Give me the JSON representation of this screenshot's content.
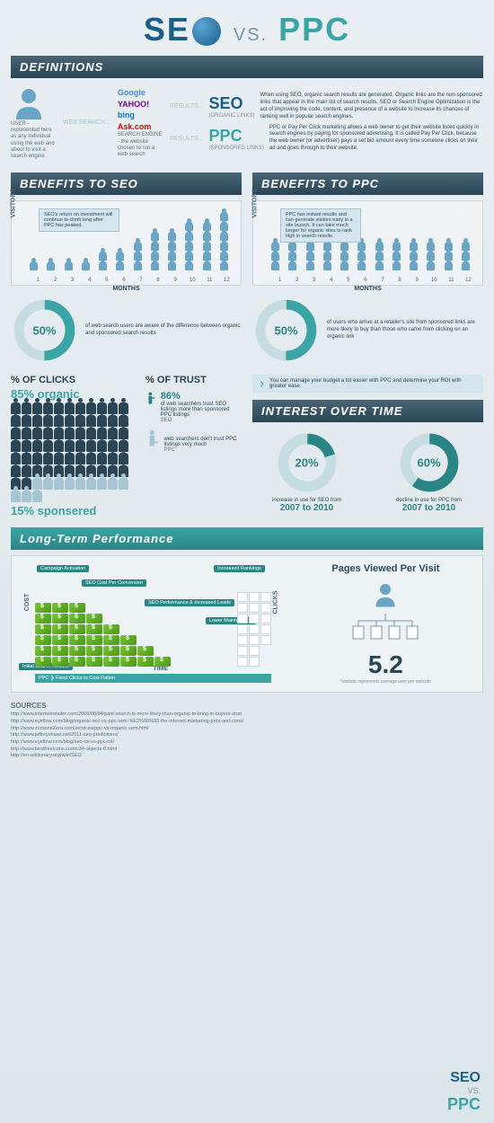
{
  "title": {
    "seo": "SE",
    "vs": "VS.",
    "ppc": "PPC"
  },
  "sections": {
    "def": "DEFINITIONS",
    "bseo": "BENEFITS TO SEO",
    "bppc": "BENEFITS TO PPC",
    "clicks": "% OF CLICKS",
    "trust": "% OF TRUST",
    "interest": "INTEREST OVER TIME",
    "ltp": "Long-Term Performance"
  },
  "def": {
    "user_caption": "USER - represented here as any individual using the web and about to visit a search engine",
    "engine_caption": "SEARCH ENGINE - the website chosen to run a web search",
    "websearch": "WEB SEARCH...",
    "results": "RESULTS...",
    "engines": {
      "google": "Google",
      "yahoo": "YAHOO!",
      "bing": "bing",
      "ask": "Ask.com"
    },
    "seo_label": "SEO",
    "seo_sub": "(ORGANIC LINKS)",
    "seo_text": "When using SEO, organic search results are generated. Organic links are the non-sponsored links that appear in the main list of search results. SEO or Search Engine Optimization is the act of improving the code, content, and presence of a website to increase its chances of ranking well in popular search engines.",
    "ppc_label": "PPC",
    "ppc_sub": "(SPONSORED LINKS)",
    "ppc_text": "PPC or Pay Per Click marketing allows a web owner to get their website listed quickly in search engines by paying for sponsored advertising. It is called Pay Per Click, because the web owner (or advertiser) pays a set bid amount every time someone clicks on their ad and goes through to their website."
  },
  "charts": {
    "ylabel": "VISITORS",
    "xlabel": "MONTHS",
    "months": [
      "1",
      "2",
      "3",
      "4",
      "5",
      "6",
      "7",
      "8",
      "9",
      "10",
      "11",
      "12"
    ],
    "seo_note": "SEO's return on investment will continue to climb long after PPC has peaked.",
    "seo_data": [
      1,
      1,
      1,
      1,
      2,
      2,
      3,
      4,
      4,
      5,
      5,
      6
    ],
    "ppc_note": "PPC has instant results and can generate visitors early in a site launch. It can take much longer for organic sites to rank high in search results.",
    "ppc_data": [
      3,
      3,
      3,
      3,
      3,
      3,
      3,
      3,
      3,
      3,
      3,
      3
    ]
  },
  "donuts": {
    "seo": {
      "pct": 50,
      "label": "50%",
      "text": "of web search users are aware of the difference between organic and sponsored search results",
      "color": "#3ba5a5",
      "bg": "#c5dde0"
    },
    "ppc": {
      "pct": 50,
      "label": "50%",
      "text": "of users who arrive at a retailer's site from sponsored links are more likely to buy than those who came from clicking on an organic link",
      "color": "#3ba5a5",
      "bg": "#c5dde0"
    }
  },
  "clicks": {
    "organic_pct": "85% organic",
    "sponsored_pct": "15% sponsered",
    "dark_count": 68,
    "light_count": 12
  },
  "trust": {
    "seo": {
      "pct": "86%",
      "text": "of web searchers trust SEO listings more than sponsored PPC listings",
      "label": "SEO"
    },
    "ppc": {
      "text": "web searchers don't trust PPC listings very much",
      "label": "PPC"
    }
  },
  "ppc_note": "You can manage your budget a lot easier with PPC and determine your ROI with greater ease.",
  "interest": {
    "seo": {
      "pct": 20,
      "label": "20%",
      "text": "increase in use for SEO from",
      "years": "2007 to 2010",
      "color": "#2a8585"
    },
    "ppc": {
      "pct": 60,
      "label": "60%",
      "text": "decline in use for PPC from",
      "years": "2007 to 2010",
      "color": "#2a8585"
    }
  },
  "ltp": {
    "tags": {
      "ca": "Campaign Activation",
      "scpc": "SEO Cost Per Conversion",
      "spi": "SEO Performance & Increased Leads",
      "ir": "Increased Rankings",
      "lm": "Lower Maintenance",
      "isr": "Initial Search Results"
    },
    "axes": {
      "cost": "COST",
      "time": "TIME",
      "clicks": "CLICKS"
    },
    "ppc_bar": "PPC ❯ Fixed Clicks to Cost Ration",
    "money_rows": [
      8,
      7,
      6,
      5,
      4,
      3
    ],
    "box_rows": [
      2,
      2,
      3,
      3,
      3,
      3,
      3
    ],
    "pages": {
      "title": "Pages Viewed Per Visit",
      "value": "5.2",
      "note": "*statistic represents average user per website"
    }
  },
  "sources": {
    "title": "SOURCES",
    "list": [
      "http://www.internetretailer.com/2009/08/04/paid-search-is-more-likely-than-organic-to-bring-in-buyers-stud",
      "http://www.eyeflow.com/blog/organic-seo-vs-ppc-sem-%E2%80%93-the-internet-marketing-pros-and-cons/",
      "http://www.zerooneZero.com/services/ppc-vs-organic-sem.html",
      "http://www.jeffreyshase.net/2011-seo-predictions/",
      "http://www.eyeflow.com/blog/seo-roi-vs-ppc-roi/",
      "http://www.bestfreeicons.com/c34-objects-0.html",
      "http://en.wiktionary.org/wiki/SEO"
    ]
  },
  "footer": {
    "seo": "SEO",
    "vs": "VS.",
    "ppc": "PPC"
  }
}
